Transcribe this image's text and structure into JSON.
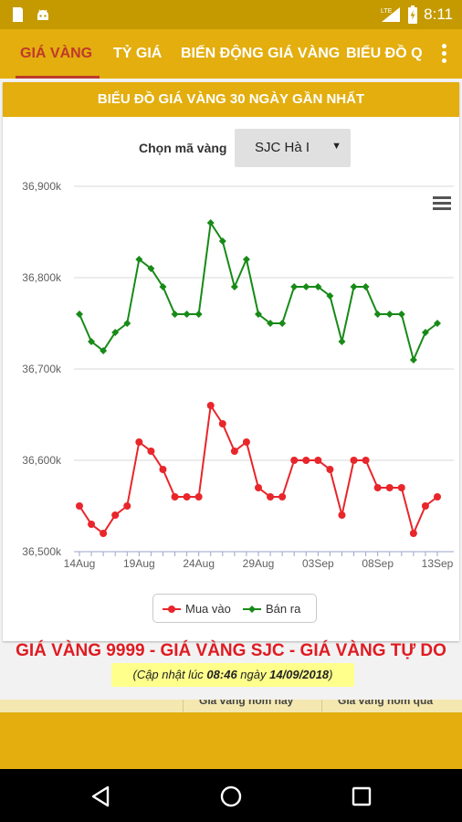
{
  "status_bar": {
    "time": "8:11",
    "network": "LTE",
    "icons": [
      "sd-card-icon",
      "android-debug-icon",
      "signal-icon",
      "battery-icon"
    ]
  },
  "tabs": [
    {
      "label": "GIÁ VÀNG",
      "active": true
    },
    {
      "label": "TỶ GIÁ",
      "active": false
    },
    {
      "label": "BIẾN ĐỘNG GIÁ VÀNG",
      "active": false
    },
    {
      "label": "BIỂU ĐỒ Q",
      "active": false
    }
  ],
  "card": {
    "title": "BIỂU ĐỒ GIÁ VÀNG 30 NGÀY GẦN NHẤT",
    "select_label": "Chọn mã vàng",
    "select_value": "SJC Hà I"
  },
  "colors": {
    "primary": "#e3ae0e",
    "status_bar": "#c49a00",
    "active_tab": "#c0392b",
    "buy_series": "#e8262b",
    "sell_series": "#178a17",
    "headline": "#e01b22",
    "note_bg": "#ffff8c"
  },
  "chart_data": {
    "type": "line",
    "x": [
      "14Aug",
      "15Aug",
      "16Aug",
      "17Aug",
      "18Aug",
      "19Aug",
      "20Aug",
      "21Aug",
      "22Aug",
      "23Aug",
      "24Aug",
      "25Aug",
      "26Aug",
      "27Aug",
      "28Aug",
      "29Aug",
      "30Aug",
      "31Aug",
      "01Sep",
      "02Sep",
      "03Sep",
      "04Sep",
      "05Sep",
      "06Sep",
      "07Sep",
      "08Sep",
      "09Sep",
      "10Sep",
      "11Sep",
      "12Sep",
      "13Sep"
    ],
    "tick_labels": [
      "14Aug",
      "19Aug",
      "24Aug",
      "29Aug",
      "03Sep",
      "08Sep",
      "13Sep"
    ],
    "y_tick_labels": [
      "36,500k",
      "36,600k",
      "36,700k",
      "36,800k",
      "36,900k"
    ],
    "ylim": [
      36500,
      36900
    ],
    "grid": true,
    "legend_position": "bottom",
    "series": [
      {
        "name": "Mua vào",
        "color": "#e8262b",
        "marker": "circle",
        "values": [
          36550,
          36530,
          36520,
          36540,
          36550,
          36620,
          36610,
          36590,
          36560,
          36560,
          36560,
          36660,
          36640,
          36610,
          36620,
          36570,
          36560,
          36560,
          36600,
          36600,
          36600,
          36590,
          36540,
          36600,
          36600,
          36570,
          36570,
          36570,
          36520,
          36550,
          36560
        ]
      },
      {
        "name": "Bán ra",
        "color": "#178a17",
        "marker": "diamond",
        "values": [
          36760,
          36730,
          36720,
          36740,
          36750,
          36820,
          36810,
          36790,
          36760,
          36760,
          36760,
          36860,
          36840,
          36790,
          36820,
          36760,
          36750,
          36750,
          36790,
          36790,
          36790,
          36780,
          36730,
          36790,
          36790,
          36760,
          36760,
          36760,
          36710,
          36740,
          36750
        ]
      }
    ]
  },
  "info": {
    "headline": "GIÁ VÀNG 9999 - GIÁ VÀNG SJC - GIÁ VÀNG TỰ DO",
    "update_prefix": "(Cập nhật lúc ",
    "update_time": "08:46",
    "update_mid": " ngày ",
    "update_date": "14/09/2018",
    "update_suffix": ")",
    "table_col_1": "Giá vàng hôm nay",
    "table_col_2": "Giá vàng hôm qua"
  }
}
